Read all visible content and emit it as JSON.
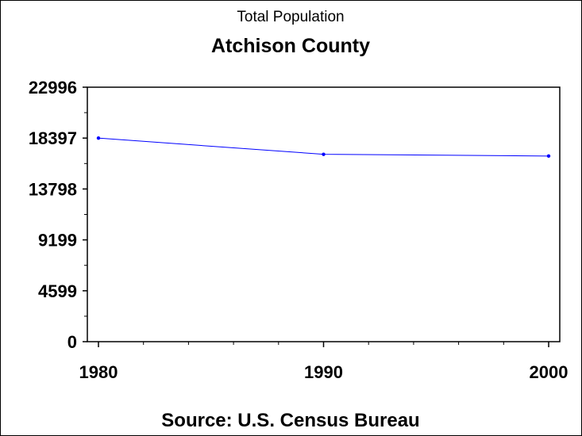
{
  "chart_data": {
    "type": "line",
    "title": "Total Population",
    "subtitle": "Atchison County",
    "footnote": "Source: U.S. Census Bureau",
    "xlabel": "",
    "ylabel": "",
    "x": [
      1980,
      1990,
      2000
    ],
    "series": [
      {
        "name": "Total Population",
        "values": [
          18397,
          16932,
          16774
        ],
        "color": "#0000ff"
      }
    ],
    "xlim": [
      1980,
      2000
    ],
    "ylim": [
      0,
      22996
    ],
    "x_ticks": [
      "1980",
      "1990",
      "2000"
    ],
    "y_ticks": [
      "0",
      "4599",
      "9199",
      "13798",
      "18397",
      "22996"
    ],
    "grid": false
  }
}
